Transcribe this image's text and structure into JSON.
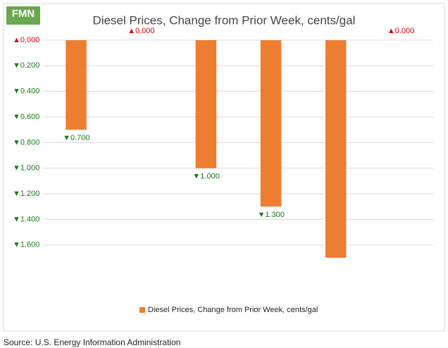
{
  "chart_data": {
    "type": "bar",
    "logo": "FMN",
    "title": "Diesel Prices, Change from Prior Week, cents/gal",
    "categories": [
      null,
      null,
      null,
      null,
      null,
      null
    ],
    "series": [
      {
        "name": "Diesel Prices, Change from Prior Week, cents/gal",
        "color": "#ed7d31",
        "values": [
          -0.7,
          0,
          -1.0,
          -1.3,
          -1.7,
          0
        ],
        "value_labels": [
          "▼0.700",
          "▲0.000",
          "▼1.000",
          "▼1.300",
          null,
          "▲0.000"
        ]
      }
    ],
    "ylim": [
      -1.75,
      0
    ],
    "yticks": [
      {
        "value": 0,
        "label": "▲0.000"
      },
      {
        "value": -0.2,
        "label": "▼0.200"
      },
      {
        "value": -0.4,
        "label": "▼0.400"
      },
      {
        "value": -0.6,
        "label": "▼0.600"
      },
      {
        "value": -0.8,
        "label": "▼0.800"
      },
      {
        "value": -1.0,
        "label": "▼1.000"
      },
      {
        "value": -1.2,
        "label": "▼1.200"
      },
      {
        "value": -1.4,
        "label": "▼1.400"
      },
      {
        "value": -1.6,
        "label": "▼1.600"
      }
    ],
    "grid": true,
    "legend": "bottom",
    "source": "Source: U.S. Energy Information Administration"
  }
}
